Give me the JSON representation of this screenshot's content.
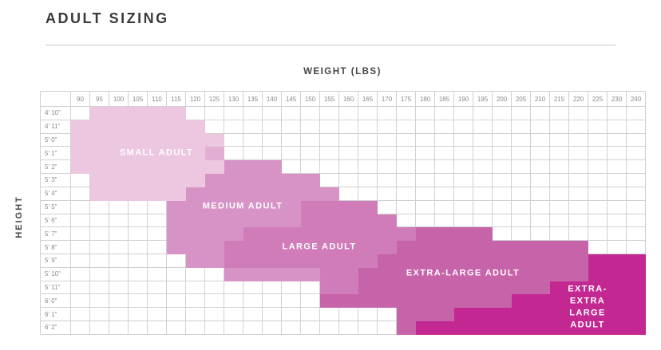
{
  "title": "ADULT SIZING",
  "chart_data": {
    "type": "heatmap",
    "title": "ADULT SIZING",
    "xlabel": "WEIGHT (LBS)",
    "ylabel": "HEIGHT",
    "grid_on": true,
    "weights": [
      90,
      95,
      100,
      105,
      110,
      115,
      120,
      125,
      130,
      135,
      140,
      145,
      150,
      155,
      160,
      165,
      170,
      175,
      180,
      185,
      190,
      195,
      200,
      205,
      210,
      215,
      220,
      225,
      230,
      240
    ],
    "heights": [
      "4' 10\"",
      "4' 11\"",
      "5' 0\"",
      "5' 1\"",
      "5' 2\"",
      "5' 3\"",
      "5' 4\"",
      "5' 5\"",
      "5' 6\"",
      "5' 7\"",
      "5' 8\"",
      "5' 9\"",
      "5' 10\"",
      "5' 11\"",
      "6' 0\"",
      "6' 1\"",
      "6' 2\""
    ],
    "regions": [
      {
        "name": "SMALL ADULT",
        "color": "#edc7e0",
        "label": {
          "text": "SMALL ADULT",
          "row": 3,
          "col_start": 1,
          "col_end": 7
        },
        "cells": [
          {
            "row": 0,
            "from": 1,
            "to": 5
          },
          {
            "row": 1,
            "from": 0,
            "to": 6
          },
          {
            "row": 2,
            "from": 0,
            "to": 7
          },
          {
            "row": 3,
            "from": 0,
            "to": 6
          },
          {
            "row": 4,
            "from": 0,
            "to": 7
          },
          {
            "row": 5,
            "from": 1,
            "to": 6
          },
          {
            "row": 6,
            "from": 1,
            "to": 5
          }
        ]
      },
      {
        "name": "MEDIUM ADULT",
        "color": "#d893c6",
        "label": {
          "text": "MEDIUM ADULT",
          "row": 7,
          "col_start": 5,
          "col_end": 12
        },
        "cells": [
          {
            "row": 4,
            "from": 8,
            "to": 10
          },
          {
            "row": 5,
            "from": 7,
            "to": 12
          },
          {
            "row": 6,
            "from": 6,
            "to": 13
          },
          {
            "row": 7,
            "from": 5,
            "to": 11
          },
          {
            "row": 8,
            "from": 5,
            "to": 11
          },
          {
            "row": 9,
            "from": 5,
            "to": 8
          },
          {
            "row": 10,
            "from": 5,
            "to": 7
          },
          {
            "row": 11,
            "from": 6,
            "to": 7
          },
          {
            "row": 12,
            "from": 8,
            "to": 12
          }
        ]
      },
      {
        "name": "LARGE ADULT",
        "color": "#d07cb8",
        "label": {
          "text": "LARGE ADULT",
          "row": 10,
          "col_start": 9,
          "col_end": 16
        },
        "cells": [
          {
            "row": 7,
            "from": 12,
            "to": 15
          },
          {
            "row": 8,
            "from": 12,
            "to": 16
          },
          {
            "row": 9,
            "from": 9,
            "to": 17
          },
          {
            "row": 10,
            "from": 8,
            "to": 16
          },
          {
            "row": 11,
            "from": 8,
            "to": 15
          },
          {
            "row": 12,
            "from": 13,
            "to": 14
          },
          {
            "row": 13,
            "from": 13,
            "to": 14
          }
        ]
      },
      {
        "name": "EXTRA-LARGE ADULT",
        "color": "#c763a9",
        "label": {
          "text": "EXTRA-LARGE ADULT",
          "row": 12,
          "col_start": 16,
          "col_end": 24
        },
        "cells": [
          {
            "row": 9,
            "from": 18,
            "to": 21
          },
          {
            "row": 10,
            "from": 17,
            "to": 26
          },
          {
            "row": 11,
            "from": 16,
            "to": 26
          },
          {
            "row": 12,
            "from": 15,
            "to": 26
          },
          {
            "row": 13,
            "from": 15,
            "to": 24
          },
          {
            "row": 14,
            "from": 13,
            "to": 22
          },
          {
            "row": 15,
            "from": 17,
            "to": 19
          },
          {
            "row": 16,
            "from": 17,
            "to": 17
          }
        ]
      },
      {
        "name": "EXTRA-EXTRA LARGE ADULT",
        "color": "#c32892",
        "label": {
          "text": "EXTRA-EXTRA\nLARGE ADULT",
          "row": 14.5,
          "col_start": 24,
          "col_end": 29
        },
        "cells": [
          {
            "row": 11,
            "from": 27,
            "to": 29
          },
          {
            "row": 12,
            "from": 27,
            "to": 29
          },
          {
            "row": 13,
            "from": 25,
            "to": 29
          },
          {
            "row": 14,
            "from": 23,
            "to": 29
          },
          {
            "row": 15,
            "from": 20,
            "to": 29
          },
          {
            "row": 16,
            "from": 18,
            "to": 29
          }
        ]
      }
    ],
    "overlap_cells": [
      {
        "row": 3,
        "col": 7,
        "color": "#e3aed3"
      }
    ]
  }
}
